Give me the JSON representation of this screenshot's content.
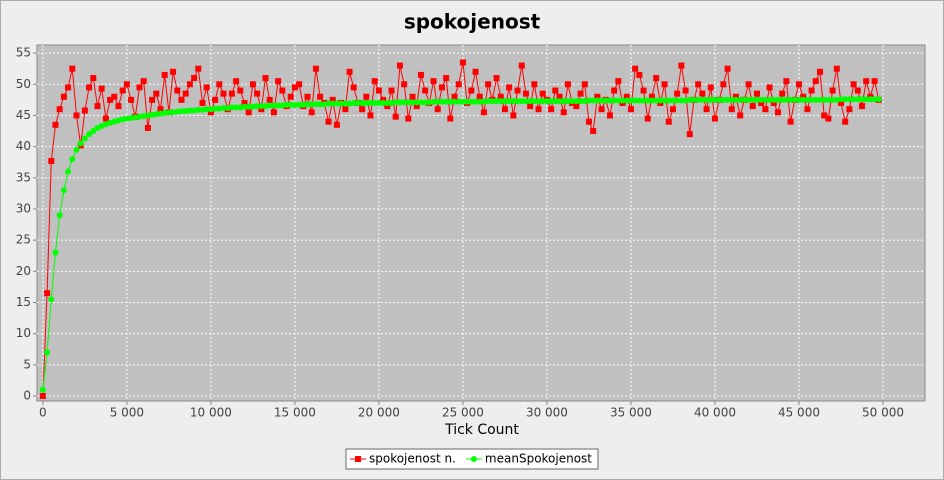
{
  "chart_data": {
    "type": "line",
    "title": "spokojenost",
    "x_label": "Tick Count",
    "x": [
      0,
      250,
      500,
      750,
      1000,
      1250,
      1500,
      1750,
      2000,
      2250,
      2500,
      2750,
      3000,
      3250,
      3500,
      3750,
      4000,
      4250,
      4500,
      4750,
      5000,
      5250,
      5500,
      5750,
      6000,
      6250,
      6500,
      6750,
      7000,
      7250,
      7500,
      7750,
      8000,
      8250,
      8500,
      8750,
      9000,
      9250,
      9500,
      9750,
      10000,
      10250,
      10500,
      10750,
      11000,
      11250,
      11500,
      11750,
      12000,
      12250,
      12500,
      12750,
      13000,
      13250,
      13500,
      13750,
      14000,
      14250,
      14500,
      14750,
      15000,
      15250,
      15500,
      15750,
      16000,
      16250,
      16500,
      16750,
      17000,
      17250,
      17500,
      17750,
      18000,
      18250,
      18500,
      18750,
      19000,
      19250,
      19500,
      19750,
      20000,
      20250,
      20500,
      20750,
      21000,
      21250,
      21500,
      21750,
      22000,
      22250,
      22500,
      22750,
      23000,
      23250,
      23500,
      23750,
      24000,
      24250,
      24500,
      24750,
      25000,
      25250,
      25500,
      25750,
      26000,
      26250,
      26500,
      26750,
      27000,
      27250,
      27500,
      27750,
      28000,
      28250,
      28500,
      28750,
      29000,
      29250,
      29500,
      29750,
      30000,
      30250,
      30500,
      30750,
      31000,
      31250,
      31500,
      31750,
      32000,
      32250,
      32500,
      32750,
      33000,
      33250,
      33500,
      33750,
      34000,
      34250,
      34500,
      34750,
      35000,
      35250,
      35500,
      35750,
      36000,
      36250,
      36500,
      36750,
      37000,
      37250,
      37500,
      37750,
      38000,
      38250,
      38500,
      38750,
      39000,
      39250,
      39500,
      39750,
      40000,
      40250,
      40500,
      40750,
      41000,
      41250,
      41500,
      41750,
      42000,
      42250,
      42500,
      42750,
      43000,
      43250,
      43500,
      43750,
      44000,
      44250,
      44500,
      44750,
      45000,
      45250,
      45500,
      45750,
      46000,
      46250,
      46500,
      46750,
      47000,
      47250,
      47500,
      47750,
      48000,
      48250,
      48500,
      48750,
      49000,
      49250,
      49500,
      49750
    ],
    "series": [
      {
        "name": "spokojenost n.",
        "color": "#ff0000",
        "marker": "square",
        "values": [
          0,
          16.5,
          37.7,
          43.5,
          46,
          48,
          49.5,
          52.5,
          45,
          40.2,
          45.8,
          49.5,
          51,
          46.5,
          49.3,
          44.5,
          47.5,
          48,
          46.5,
          49,
          50,
          47.5,
          44.8,
          49.5,
          50.5,
          43,
          47.5,
          48.5,
          46,
          51.5,
          45.5,
          52,
          49,
          47.5,
          48.5,
          50,
          51,
          52.5,
          47,
          49.5,
          45.5,
          47.5,
          50,
          48.5,
          46,
          48.5,
          50.5,
          49,
          47,
          45.5,
          50,
          48.5,
          46,
          51,
          47.5,
          45.5,
          50.5,
          49,
          46.5,
          48,
          49.5,
          50,
          46.5,
          48,
          45.5,
          52.5,
          48,
          47,
          44,
          47.5,
          43.5,
          47,
          46,
          52,
          49.5,
          47,
          46,
          48,
          45,
          50.5,
          49,
          47.5,
          46.5,
          49,
          44.8,
          53,
          50,
          44.5,
          48,
          46.5,
          51.5,
          49,
          47,
          50.5,
          46,
          49.5,
          51,
          44.5,
          48,
          50,
          53.5,
          47,
          49,
          52,
          48,
          45.5,
          50,
          47.5,
          51,
          48,
          46,
          49.5,
          45,
          49,
          53,
          48.5,
          46.5,
          50,
          46,
          48.5,
          47.5,
          46,
          49,
          48,
          45.5,
          50,
          47,
          46.5,
          48.5,
          50,
          44,
          42.5,
          48,
          46,
          47.5,
          45,
          49,
          50.5,
          47,
          48,
          46,
          52.5,
          51.5,
          49,
          44.5,
          48,
          51,
          47,
          50,
          44,
          46,
          48.5,
          53,
          49,
          42,
          47.5,
          50,
          48.5,
          46,
          49.5,
          44.5,
          47.5,
          50,
          52.5,
          46,
          48,
          45,
          47.5,
          50,
          46.5,
          48.5,
          47,
          46,
          49.5,
          47,
          45.5,
          48.5,
          50.5,
          44,
          47.5,
          50,
          48,
          46,
          49,
          50.5,
          52,
          45,
          44.5,
          49,
          52.5,
          47,
          44,
          46,
          50,
          49,
          46.5,
          50.5,
          48,
          50.5,
          47.5
        ]
      },
      {
        "name": "meanSpokojenost",
        "color": "#00ff00",
        "marker": "circle",
        "values": [
          1.0,
          7,
          15.5,
          23,
          29,
          33,
          36,
          38,
          39.5,
          40.5,
          41.3,
          42,
          42.5,
          43,
          43.3,
          43.6,
          43.8,
          44,
          44.2,
          44.4,
          44.5,
          44.6,
          44.7,
          44.8,
          44.9,
          45,
          45.1,
          45.2,
          45.3,
          45.4,
          45.5,
          45.5,
          45.6,
          45.7,
          45.7,
          45.8,
          45.8,
          45.9,
          45.9,
          46,
          46,
          46.1,
          46.1,
          46.2,
          46.2,
          46.3,
          46.3,
          46.3,
          46.4,
          46.4,
          46.4,
          46.5,
          46.5,
          46.5,
          46.6,
          46.6,
          46.6,
          46.6,
          46.7,
          46.7,
          46.7,
          46.7,
          46.7,
          46.8,
          46.8,
          46.8,
          46.8,
          46.8,
          46.9,
          46.9,
          46.9,
          46.9,
          46.9,
          46.9,
          47,
          47,
          47,
          47,
          47,
          47,
          47,
          47,
          47,
          47,
          47.1,
          47.1,
          47.1,
          47.1,
          47.1,
          47.1,
          47.1,
          47.1,
          47.1,
          47.2,
          47.2,
          47.2,
          47.2,
          47.2,
          47.2,
          47.2,
          47.2,
          47.2,
          47.2,
          47.2,
          47.2,
          47.2,
          47.3,
          47.3,
          47.3,
          47.3,
          47.3,
          47.3,
          47.3,
          47.3,
          47.3,
          47.3,
          47.3,
          47.3,
          47.3,
          47.3,
          47.3,
          47.3,
          47.3,
          47.3,
          47.3,
          47.3,
          47.3,
          47.3,
          47.3,
          47.3,
          47.4,
          47.4,
          47.4,
          47.4,
          47.4,
          47.4,
          47.4,
          47.4,
          47.4,
          47.4,
          47.4,
          47.4,
          47.4,
          47.4,
          47.4,
          47.4,
          47.4,
          47.4,
          47.4,
          47.4,
          47.4,
          47.4,
          47.4,
          47.4,
          47.5,
          47.5,
          47.5,
          47.5,
          47.5,
          47.5,
          47.5,
          47.5,
          47.5,
          47.5,
          47.5,
          47.5,
          47.5,
          47.5,
          47.5,
          47.5,
          47.5,
          47.5,
          47.5,
          47.5,
          47.5,
          47.5,
          47.5,
          47.5,
          47.5,
          47.5,
          47.5,
          47.5,
          47.5,
          47.5,
          47.5,
          47.5,
          47.5,
          47.5,
          47.5,
          47.5,
          47.6,
          47.6,
          47.6,
          47.6,
          47.6,
          47.6,
          47.6,
          47.6,
          47.6,
          47.6
        ]
      }
    ],
    "xlim": [
      -350,
      52500
    ],
    "ylim": [
      -0.8,
      56.3
    ],
    "xticks": [
      0,
      {
        "value": 5000,
        "label": "5 000"
      },
      {
        "value": 10000,
        "label": "10 000"
      },
      {
        "value": 15000,
        "label": "15 000"
      },
      {
        "value": 20000,
        "label": "20 000"
      },
      {
        "value": 25000,
        "label": "25 000"
      },
      {
        "value": 30000,
        "label": "30 000"
      },
      {
        "value": 35000,
        "label": "35 000"
      },
      {
        "value": 40000,
        "label": "40 000"
      },
      {
        "value": 45000,
        "label": "45 000"
      },
      {
        "value": 50000,
        "label": "50 000"
      }
    ],
    "yticks": [
      0,
      5,
      10,
      15,
      20,
      25,
      30,
      35,
      40,
      45,
      50,
      55
    ],
    "grid": true,
    "legend": "bottom"
  }
}
